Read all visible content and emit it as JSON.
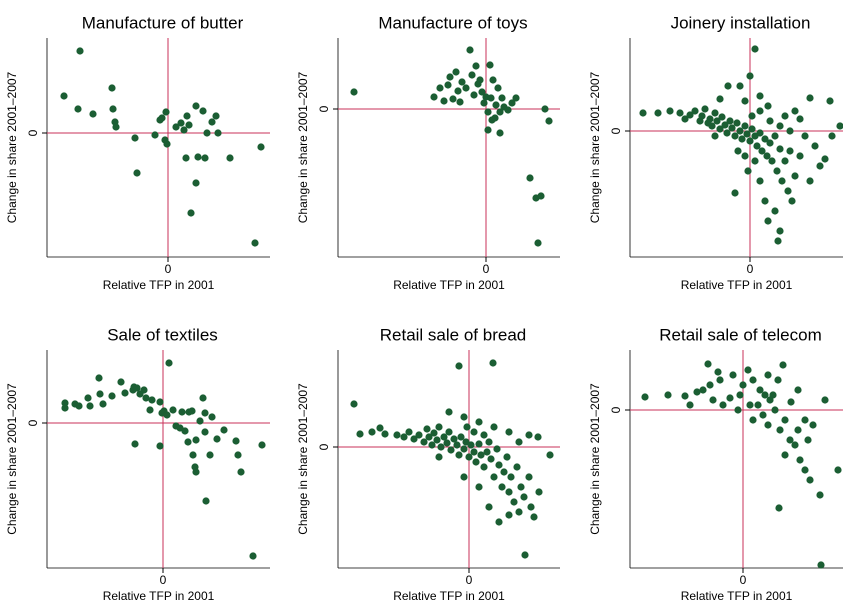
{
  "chart_data": [
    {
      "type": "scatter",
      "title": "Manufacture of butter",
      "x_label": "Relative TFP in 2001",
      "y_label": "Change in share 2001–2007",
      "color": "#1b5e33",
      "refline_color": "#c8325a",
      "xlim": [
        -1.21,
        1.02
      ],
      "ylim": [
        -1.24,
        0.95
      ],
      "xticks": [
        0
      ],
      "yticks": [
        0
      ],
      "x": [
        -1.04,
        -0.9,
        -0.75,
        -0.88,
        -0.56,
        -0.55,
        -0.53,
        -0.52,
        -0.33,
        -0.31,
        -0.13,
        -0.08,
        -0.06,
        -0.02,
        -0.03,
        -0.01,
        0.08,
        0.13,
        0.16,
        0.19,
        0.21,
        0.28,
        0.35,
        0.3,
        0.37,
        0.23,
        0.28,
        0.39,
        0.44,
        0.48,
        0.5,
        0.62,
        0.87,
        0.93,
        0.18
      ],
      "values": [
        0.37,
        0.24,
        0.19,
        0.82,
        0.45,
        0.24,
        0.11,
        0.06,
        -0.05,
        -0.4,
        -0.02,
        0.13,
        0.15,
        0.21,
        -0.07,
        -0.11,
        0.06,
        0.1,
        0.03,
        0.17,
        0.08,
        0.27,
        0.22,
        -0.24,
        -0.25,
        -0.8,
        -0.5,
        0,
        0.11,
        0.17,
        0,
        -0.25,
        -1.1,
        -0.14,
        -0.25
      ]
    },
    {
      "type": "scatter",
      "title": "Manufacture of toys",
      "x_label": "Relative TFP in 2001",
      "y_label": "Change in share 2001–2007",
      "color": "#1b5e33",
      "refline_color": "#c8325a",
      "xlim": [
        -1.48,
        0.74
      ],
      "ylim": [
        -1.48,
        0.71
      ],
      "xticks": [
        0
      ],
      "yticks": [
        0
      ],
      "x": [
        -1.32,
        -0.52,
        -0.46,
        -0.42,
        -0.38,
        -0.36,
        -0.33,
        -0.3,
        -0.28,
        -0.26,
        -0.24,
        -0.2,
        -0.16,
        -0.14,
        -0.12,
        -0.1,
        -0.08,
        -0.06,
        -0.04,
        -0.02,
        0,
        0.02,
        0.04,
        0.05,
        0.07,
        0.09,
        0.1,
        0.12,
        0.14,
        0.14,
        0.16,
        0.18,
        0.22,
        0.26,
        0.3,
        0.44,
        0.5,
        0.52,
        0.55,
        0.59,
        0.63,
        0.02,
        0.06
      ],
      "values": [
        0.17,
        0.12,
        0.21,
        0.08,
        0.24,
        0.32,
        0.1,
        0.37,
        0.18,
        0.07,
        0.27,
        0.21,
        0.59,
        0.34,
        0.14,
        0.43,
        0.25,
        0.29,
        0.17,
        0.06,
        0.12,
        -0.03,
        0.44,
        0.11,
        0.29,
        -0.09,
        0.04,
        0.21,
        -0.03,
        -0.24,
        0.11,
        0.02,
        -0.01,
        0.06,
        0.11,
        -0.69,
        -0.89,
        -1.34,
        -0.87,
        0,
        -0.12,
        -0.21,
        -0.11
      ]
    },
    {
      "type": "scatter",
      "title": "Joinery installation",
      "x_label": "Relative TFP in 2001",
      "y_label": "Change in share 2001–2007",
      "color": "#1b5e33",
      "refline_color": "#c8325a",
      "xlim": [
        -1.2,
        0.93
      ],
      "ylim": [
        -1.26,
        0.93
      ],
      "xticks": [
        0
      ],
      "yticks": [
        0
      ],
      "x": [
        -1.07,
        -0.92,
        -0.8,
        -0.7,
        -0.65,
        -0.6,
        -0.55,
        -0.5,
        -0.48,
        -0.45,
        -0.42,
        -0.4,
        -0.38,
        -0.35,
        -0.33,
        -0.3,
        -0.28,
        -0.25,
        -0.23,
        -0.2,
        -0.18,
        -0.15,
        -0.13,
        -0.1,
        -0.08,
        -0.05,
        -0.03,
        0,
        0.02,
        0.05,
        0.07,
        0.1,
        0.12,
        0.15,
        0.17,
        0.2,
        0.22,
        0.25,
        0.27,
        0.3,
        0.32,
        0.35,
        0.38,
        0.4,
        0.42,
        0.45,
        0.18,
        0.25,
        0.3,
        0.28,
        0.15,
        0.1,
        -0.15,
        -0.3,
        -0.22,
        -0.1,
        0,
        -0.05,
        0.1,
        0.18,
        0.05,
        0.1,
        0.2,
        0.3,
        0.5,
        0.55,
        0.6,
        0.65,
        0.7,
        0.75,
        0.8,
        0.82,
        0.9,
        -0.12,
        -0.05,
        0.05,
        0.45,
        0.02,
        -0.35,
        0.35,
        0.4,
        -0.02,
        0.5,
        0.6
      ],
      "values": [
        0.18,
        0.18,
        0.2,
        0.18,
        0.12,
        0.16,
        0.2,
        0.1,
        0.15,
        0.22,
        0.08,
        0.12,
        0.05,
        0.18,
        0.1,
        0.02,
        0.14,
        0.06,
        -0.02,
        0.1,
        0.03,
        -0.05,
        0.08,
        0,
        -0.08,
        0.05,
        -0.03,
        -0.1,
        0.02,
        -0.05,
        -0.15,
        -0.02,
        -0.2,
        -0.08,
        -0.25,
        -0.12,
        -0.3,
        -0.05,
        -0.4,
        -0.18,
        -0.5,
        -0.3,
        -0.6,
        -0.2,
        -0.7,
        -0.45,
        -0.9,
        -0.8,
        -1.0,
        -1.1,
        -0.7,
        -0.5,
        -0.62,
        0.32,
        0.45,
        0.45,
        0.55,
        0.3,
        0.35,
        0.25,
        0.82,
        0.2,
        0.1,
        0.05,
        0.12,
        -0.05,
        0.33,
        -0.15,
        -0.35,
        -0.28,
        0.3,
        -0.05,
        0.05,
        -0.2,
        -0.25,
        -0.3,
        0.2,
        0.15,
        -0.05,
        0.15,
        0,
        -0.4,
        -0.25,
        -0.5
      ]
    },
    {
      "type": "scatter",
      "title": "Sale of textiles",
      "x_label": "Relative TFP in 2001",
      "y_label": "Change in share 2001–2007",
      "color": "#1b5e33",
      "refline_color": "#c8325a",
      "xlim": [
        -1.16,
        1.07
      ],
      "ylim": [
        -1.45,
        0.73
      ],
      "xticks": [
        0
      ],
      "yticks": [
        0
      ],
      "x": [
        -0.98,
        -0.98,
        -0.88,
        -0.84,
        -0.75,
        -0.73,
        -0.64,
        -0.63,
        -0.6,
        -0.51,
        -0.42,
        -0.38,
        -0.3,
        -0.29,
        -0.26,
        -0.23,
        -0.19,
        -0.17,
        -0.13,
        -0.11,
        -0.03,
        -0.01,
        0.01,
        0.04,
        0.06,
        0.1,
        0.13,
        0.19,
        0.22,
        0.26,
        0.29,
        0.33,
        0.37,
        0.4,
        0.42,
        0.42,
        0.47,
        0.49,
        0.54,
        0.3,
        0.32,
        0.33,
        0.43,
        -0.28,
        -0.03,
        0.61,
        0.73,
        0.75,
        0.78,
        0.9,
        0.99,
        0.17,
        0.25
      ],
      "values": [
        0.2,
        0.15,
        0.19,
        0.17,
        0.25,
        0.17,
        0.45,
        0.29,
        0.19,
        0.27,
        0.41,
        0.3,
        0.33,
        0.36,
        0.35,
        0.29,
        0.33,
        0.25,
        0.13,
        0.23,
        0.21,
        0.1,
        0.12,
        0.08,
        0.6,
        0.13,
        -0.03,
        0.11,
        -0.08,
        0.11,
        0.12,
        -0.17,
        0.02,
        0.25,
        -0.09,
        0.1,
        -0.32,
        0.06,
        -0.16,
        -0.32,
        -0.44,
        -0.49,
        -0.78,
        -0.21,
        -0.23,
        -0.07,
        -0.18,
        -0.32,
        -0.49,
        -1.33,
        -0.22,
        -0.05,
        -0.19
      ]
    },
    {
      "type": "scatter",
      "title": "Retail sale of bread",
      "x_label": "Relative TFP in 2001",
      "y_label": "Change in share 2001–2007",
      "color": "#1b5e33",
      "refline_color": "#c8325a",
      "xlim": [
        -1.31,
        0.91
      ],
      "ylim": [
        -1.21,
        0.97
      ],
      "xticks": [
        0
      ],
      "yticks": [
        0
      ],
      "x": [
        -1.15,
        -1.09,
        -0.97,
        -0.89,
        -0.84,
        -0.72,
        -0.65,
        -0.6,
        -0.55,
        -0.5,
        -0.45,
        -0.42,
        -0.4,
        -0.37,
        -0.35,
        -0.32,
        -0.3,
        -0.28,
        -0.25,
        -0.22,
        -0.2,
        -0.18,
        -0.15,
        -0.12,
        -0.1,
        -0.08,
        -0.05,
        -0.03,
        0,
        0.02,
        0.05,
        0.07,
        0.1,
        0.12,
        0.15,
        0.18,
        0.2,
        0.22,
        0.25,
        0.28,
        0.3,
        0.33,
        0.35,
        0.38,
        0.4,
        0.42,
        0.45,
        0.48,
        0.5,
        0.52,
        0.55,
        0.6,
        0.62,
        0.65,
        0.7,
        0.2,
        0.3,
        0.4,
        0.1,
        -0.05,
        -0.1,
        0.24,
        0.56,
        0.81,
        0.69,
        -0.2,
        -0.05,
        0.1,
        0.25,
        0.4,
        0.5,
        0.6,
        -0.3,
        0.15,
        0.05,
        -0.02
      ],
      "values": [
        0.43,
        0.13,
        0.15,
        0.19,
        0.13,
        0.12,
        0.1,
        0.15,
        0.08,
        0.12,
        0.05,
        0.18,
        0.1,
        0.02,
        0.14,
        0.07,
        0.2,
        0,
        0.1,
        0.04,
        0.15,
        -0.03,
        0.08,
        0.02,
        -0.08,
        0.1,
        -0.02,
        0.05,
        -0.1,
        0.02,
        -0.05,
        -0.15,
        0.03,
        -0.08,
        -0.2,
        -0.05,
        0.05,
        -0.12,
        -0.3,
        -0.02,
        -0.18,
        -0.4,
        -0.25,
        -0.1,
        -0.45,
        -0.3,
        -0.55,
        -0.2,
        -0.65,
        -0.4,
        -0.5,
        -0.3,
        -0.6,
        -0.7,
        -0.45,
        -0.6,
        -0.75,
        -0.68,
        -0.4,
        -0.3,
        0.81,
        0.84,
        -1.08,
        -0.08,
        0.1,
        0.35,
        0.3,
        0.25,
        0.2,
        0.15,
        0.05,
        0.12,
        -0.1,
        0.12,
        0.15,
        0.2
      ]
    },
    {
      "type": "scatter",
      "title": "Retail sale of telecom",
      "x_label": "Relative TFP in 2001",
      "y_label": "Change in share 2001–2007",
      "color": "#1b5e33",
      "refline_color": "#c8325a",
      "xlim": [
        -1.13,
        1.0
      ],
      "ylim": [
        -1.58,
        0.6
      ],
      "xticks": [
        0
      ],
      "yticks": [
        0
      ],
      "x": [
        -0.98,
        -0.75,
        -0.58,
        -0.53,
        -0.46,
        -0.35,
        -0.33,
        -0.23,
        -0.13,
        -0.03,
        0.07,
        0.17,
        0.22,
        0.27,
        0.32,
        0.37,
        0.42,
        0.42,
        0.47,
        0.52,
        0.57,
        0.62,
        0.67,
        0.62,
        0.77,
        0.82,
        0.95,
        0.36,
        0.78,
        -0.4,
        -0.3,
        -0.2,
        -0.1,
        0,
        0.05,
        0.1,
        0.15,
        0.2,
        0.25,
        0.3,
        0.35,
        0.4,
        0.48,
        0.55,
        0.65,
        0.7,
        0.1,
        -0.05,
        0.25,
        -0.25,
        0.55
      ],
      "values": [
        0.13,
        0.15,
        0.14,
        0.05,
        0.18,
        0.46,
        0.25,
        0.3,
        0.12,
        0.15,
        0.05,
        0.2,
        0.15,
        0.1,
        0,
        -0.2,
        -0.1,
        -0.45,
        -0.3,
        -0.35,
        -0.5,
        -0.6,
        -0.7,
        -0.1,
        -0.85,
        0.1,
        -0.6,
        -0.98,
        -1.55,
        0.2,
        0.1,
        0.05,
        0.35,
        0.25,
        0.4,
        0.3,
        0.05,
        -0.05,
        -0.15,
        0.15,
        0.3,
        0.45,
        0.08,
        -0.2,
        -0.3,
        -0.15,
        -0.1,
        0,
        0.35,
        0.38,
        0.2
      ]
    }
  ]
}
